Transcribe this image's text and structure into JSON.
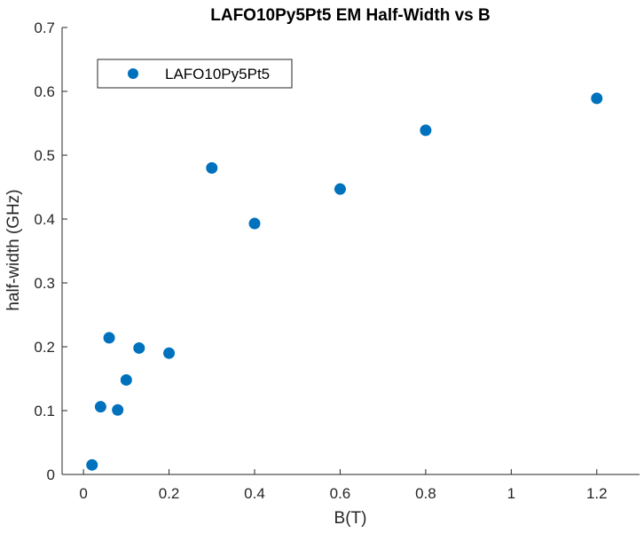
{
  "chart_data": {
    "type": "scatter",
    "title": "LAFO10Py5Pt5 EM Half-Width vs B",
    "xlabel": "B(T)",
    "ylabel": "half-width (GHz)",
    "xlim": [
      -0.05,
      1.3
    ],
    "ylim": [
      0,
      0.7
    ],
    "x_ticks": [
      0,
      0.2,
      0.4,
      0.6,
      0.8,
      1,
      1.2
    ],
    "x_tick_labels": [
      "0",
      "0.2",
      "0.4",
      "0.6",
      "0.8",
      "1",
      "1.2"
    ],
    "y_ticks": [
      0,
      0.1,
      0.2,
      0.3,
      0.4,
      0.5,
      0.6,
      0.7
    ],
    "y_tick_labels": [
      "0",
      "0.1",
      "0.2",
      "0.3",
      "0.4",
      "0.5",
      "0.6",
      "0.7"
    ],
    "grid": false,
    "legend_position": "top-left",
    "series": [
      {
        "name": "LAFO10Py5Pt5",
        "color": "#0072BD",
        "marker": "filled-circle",
        "points": [
          {
            "x": 0.02,
            "y": 0.015
          },
          {
            "x": 0.04,
            "y": 0.106
          },
          {
            "x": 0.06,
            "y": 0.214
          },
          {
            "x": 0.08,
            "y": 0.101
          },
          {
            "x": 0.1,
            "y": 0.148
          },
          {
            "x": 0.13,
            "y": 0.198
          },
          {
            "x": 0.2,
            "y": 0.19
          },
          {
            "x": 0.3,
            "y": 0.48
          },
          {
            "x": 0.4,
            "y": 0.393
          },
          {
            "x": 0.6,
            "y": 0.447
          },
          {
            "x": 0.8,
            "y": 0.539
          },
          {
            "x": 1.2,
            "y": 0.589
          }
        ]
      }
    ]
  }
}
